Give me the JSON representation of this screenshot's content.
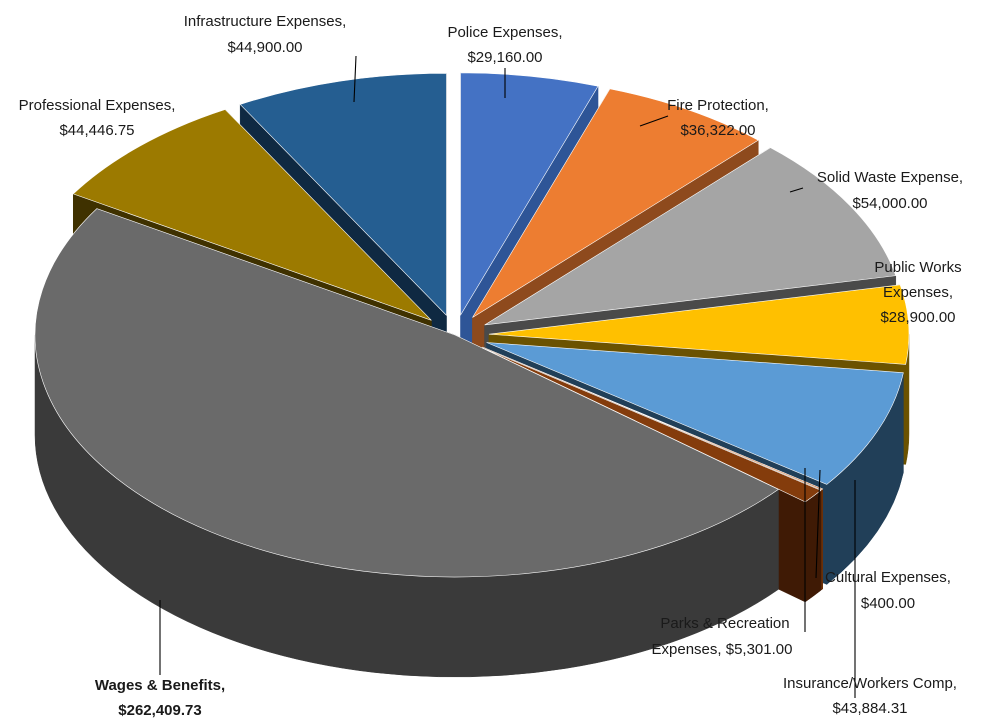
{
  "chart_data": {
    "type": "pie",
    "style": "3d-exploded",
    "slices": [
      {
        "name": "Police Expenses,",
        "value_text": "$29,160.00",
        "value": 29160.0,
        "color": "#4472C4",
        "dark": "#2E5597"
      },
      {
        "name": "Fire Protection,",
        "value_text": "$36,322.00",
        "value": 36322.0,
        "color": "#ED7D31",
        "dark": "#8E4A1D"
      },
      {
        "name": "Solid Waste Expense,",
        "value_text": "$54,000.00",
        "value": 54000.0,
        "color": "#A5A5A5",
        "dark": "#4A4A4A"
      },
      {
        "name": "Public Works Expenses,",
        "value_text": "$28,900.00",
        "value": 28900.0,
        "color": "#FFC000",
        "dark": "#6B5200"
      },
      {
        "name": "Insurance/Workers Comp,",
        "value_text": "$43,884.31",
        "value": 43884.31,
        "color": "#5B9BD5",
        "dark": "#213F58"
      },
      {
        "name": "Cultural Expenses,",
        "value_text": "$400.00",
        "value": 400.0,
        "color": "#C55A11",
        "dark": "#6A2F08"
      },
      {
        "name": "Parks & Recreation Expenses,",
        "value_text": "$5,301.00",
        "value": 5301.0,
        "color": "#843C0C",
        "dark": "#3F1A05"
      },
      {
        "name": "Wages & Benefits,",
        "value_text": "$262,409.73",
        "value": 262409.73,
        "color": "#6A6A6A",
        "dark": "#3A3A3A"
      },
      {
        "name": "Professional Expenses,",
        "value_text": "$44,446.75",
        "value": 44446.75,
        "color": "#9C7A00",
        "dark": "#3F3100"
      },
      {
        "name": "Infrastructure Expenses,",
        "value_text": "$44,900.00",
        "value": 44900.0,
        "color": "#255E91",
        "dark": "#0F2942"
      }
    ]
  }
}
